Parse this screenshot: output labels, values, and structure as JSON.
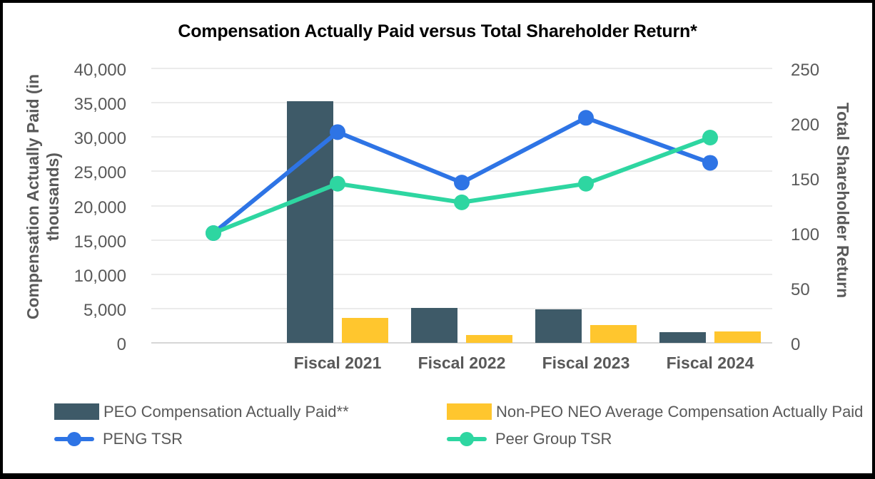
{
  "chart_data": {
    "type": "combo-bar-line",
    "title": "Compensation Actually Paid versus Total Shareholder Return*",
    "categories": [
      "",
      "Fiscal 2021",
      "Fiscal 2022",
      "Fiscal 2023",
      "Fiscal 2024"
    ],
    "left_axis": {
      "title": "Compensation Actually Paid (in thousands)",
      "min": 0,
      "max": 40000,
      "step": 5000,
      "tick_labels": [
        "40,000",
        "35,000",
        "30,000",
        "25,000",
        "20,000",
        "15,000",
        "10,000",
        "5,000",
        "0"
      ]
    },
    "right_axis": {
      "title": "Total Shareholder Return",
      "min": 0,
      "max": 250,
      "step": 50,
      "tick_labels": [
        "250",
        "200",
        "150",
        "100",
        "50",
        "0"
      ]
    },
    "grid": true,
    "legend_position": "bottom",
    "bar_series": [
      {
        "name": "PEO Compensation Actually Paid**",
        "axis": "left",
        "color": "#3E5A68",
        "values": [
          null,
          35200,
          5100,
          4900,
          1600
        ]
      },
      {
        "name": "Non-PEO NEO Average Compensation Actually Paid",
        "axis": "left",
        "color": "#FFC62E",
        "values": [
          null,
          3600,
          1100,
          2600,
          1700
        ]
      }
    ],
    "line_series": [
      {
        "name": "PENG TSR",
        "axis": "right",
        "color": "#2E74E5",
        "values": [
          100,
          192,
          146,
          205,
          164
        ]
      },
      {
        "name": "Peer Group TSR",
        "axis": "right",
        "color": "#2ED6A1",
        "values": [
          100,
          145,
          128,
          145,
          187
        ]
      }
    ]
  }
}
